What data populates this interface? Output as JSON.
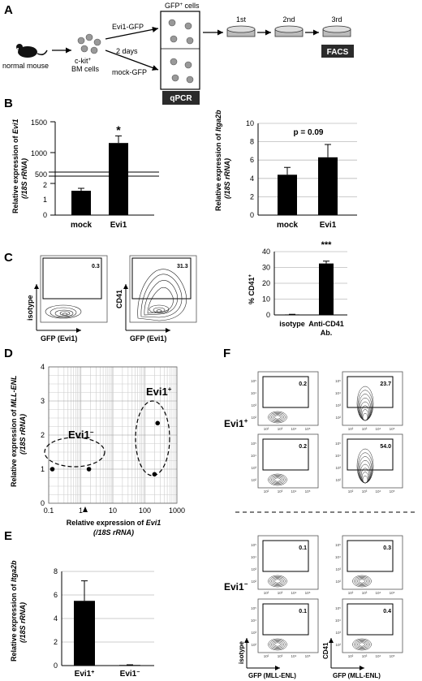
{
  "panel_letters": {
    "a": "A",
    "b": "B",
    "c": "C",
    "d": "D",
    "e": "E",
    "f": "F"
  },
  "panel_a": {
    "mouse_label": "normal mouse",
    "cells_label_1": "c-kit",
    "cells_label_sup": "+",
    "cells_label_2": "BM cells",
    "evi1_gfp": "Evi1-GFP",
    "two_days": "2 days",
    "mock_gfp": "mock-GFP",
    "gfp_cells": "GFP",
    "gfp_cells_sup": "+",
    "gfp_cells_suffix": " cells",
    "qpcr": "qPCR",
    "round_1": "1st",
    "round_2": "2nd",
    "round_3": "3rd",
    "facs": "FACS"
  },
  "panel_b_left": {
    "ylabel_1": "Relative expression of ",
    "ylabel_gene": "Evi1",
    "ylabel_2": "(/18S rRNA)",
    "yticks_upper": [
      "1500",
      "1000",
      "500"
    ],
    "yticks_lower": [
      "2",
      "1",
      "0"
    ],
    "significance": "*",
    "chart_data": {
      "type": "bar",
      "categories": [
        "mock",
        "Evi1"
      ],
      "values": [
        2.0,
        1050
      ],
      "errors": [
        0.2,
        150
      ],
      "broken_axis": true,
      "lower_range": [
        0,
        2.6
      ],
      "upper_range": [
        400,
        1500
      ]
    }
  },
  "panel_b_right": {
    "ylabel_1": "Relative expression of ",
    "ylabel_gene": "Itga2b",
    "ylabel_2": "(/18S rRNA)",
    "yticks": [
      "10",
      "8",
      "6",
      "4",
      "2",
      "0"
    ],
    "pvalue": "p = 0.09",
    "chart_data": {
      "type": "bar",
      "categories": [
        "mock",
        "Evi1"
      ],
      "values": [
        4.4,
        6.3
      ],
      "errors": [
        0.8,
        1.4
      ],
      "ylim": [
        0,
        10
      ]
    }
  },
  "panel_c": {
    "plot1_ylabel": "isotype",
    "plot1_xlabel": "GFP (Evi1)",
    "plot1_gate": "0.3",
    "plot2_ylabel": "CD41",
    "plot2_xlabel": "GFP (Evi1)",
    "plot2_gate": "31.3",
    "ticks": [
      "10²",
      "10³",
      "10⁴",
      "10⁵"
    ],
    "bar_ylabel": "% CD41",
    "bar_ylabel_sup": "+",
    "bar_yticks": [
      "40",
      "30",
      "20",
      "10",
      "0"
    ],
    "significance": "***",
    "chart_data": {
      "type": "bar",
      "categories": [
        "isotype",
        "Anti-CD41 Ab."
      ],
      "category_lines": [
        [
          "isotype"
        ],
        [
          "Anti-CD41",
          "Ab."
        ]
      ],
      "values": [
        0.3,
        32.5
      ],
      "errors": [
        0.1,
        1.5
      ],
      "ylim": [
        0,
        40
      ]
    }
  },
  "panel_d": {
    "ylabel_1": "Relative expression of ",
    "ylabel_gene": "MLL-ENL",
    "ylabel_2": "(/18S rRNA)",
    "xlabel_1": "Relative expression of ",
    "xlabel_gene": "Evi1",
    "xlabel_2": "(/18S rRNA)",
    "yticks": [
      "4",
      "3",
      "2",
      "1",
      "0"
    ],
    "xticks": [
      "0.1",
      "1",
      "10",
      "100",
      "1000"
    ],
    "group_pos": "Evi1",
    "group_pos_sup": "+",
    "group_neg": "Evi1",
    "group_neg_sup": "−",
    "chart_data": {
      "type": "scatter",
      "x_scale": "log",
      "xlim": [
        0.1,
        1000
      ],
      "ylim": [
        0,
        4
      ],
      "series": [
        {
          "x": [
            0.13,
            1.8
          ],
          "y": [
            1.0,
            1.0
          ]
        },
        {
          "x": [
            250,
            200
          ],
          "y": [
            2.35,
            0.85
          ]
        }
      ]
    }
  },
  "panel_e": {
    "ylabel_1": "Relative expression of ",
    "ylabel_gene": "Itga2b",
    "ylabel_2": "(/18S rRNA)",
    "yticks": [
      "8",
      "6",
      "4",
      "2",
      "0"
    ],
    "chart_data": {
      "type": "bar",
      "categories": [
        "Evi1⁺",
        "Evi1⁻"
      ],
      "values": [
        5.5,
        0.05
      ],
      "errors": [
        1.7,
        0.02
      ],
      "ylim": [
        0,
        8
      ]
    }
  },
  "panel_f": {
    "group_pos": "Evi1",
    "group_pos_sup": "+",
    "group_neg": "Evi1",
    "group_neg_sup": "−",
    "gates": [
      "0.2",
      "23.7",
      "0.2",
      "54.0",
      "0.1",
      "0.3",
      "0.1",
      "0.4"
    ],
    "ylabel_left": "isotype",
    "ylabel_right": "CD41",
    "xlabel": "GFP (MLL-ENL)",
    "ticks": [
      "10²",
      "10³",
      "10⁴",
      "10⁵"
    ]
  }
}
